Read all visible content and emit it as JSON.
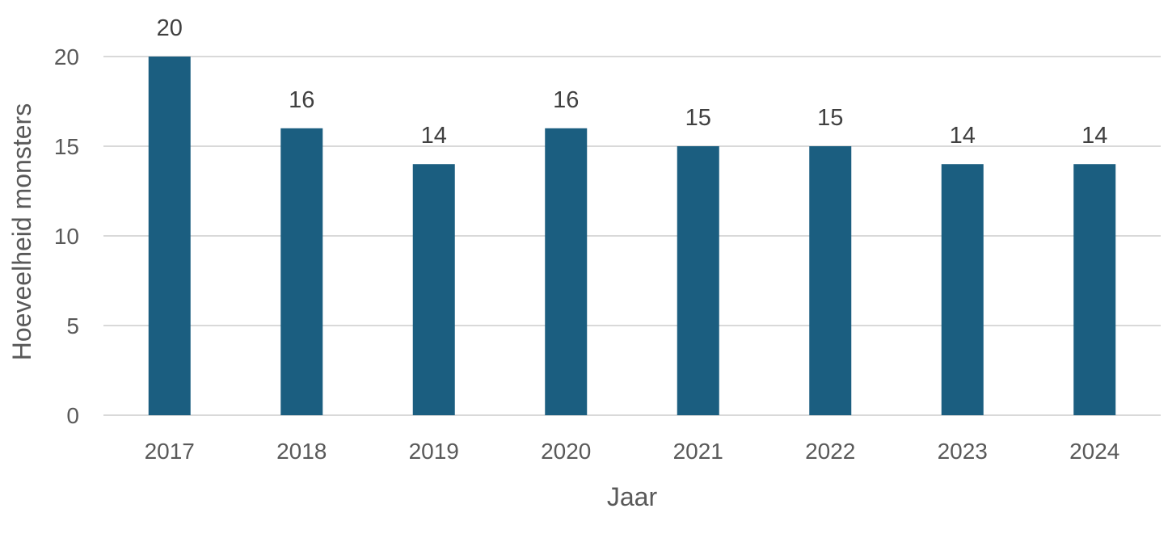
{
  "chart_data": {
    "type": "bar",
    "categories": [
      "2017",
      "2018",
      "2019",
      "2020",
      "2021",
      "2022",
      "2023",
      "2024"
    ],
    "values": [
      20,
      16,
      14,
      16,
      15,
      15,
      14,
      14
    ],
    "xlabel": "Jaar",
    "ylabel": "Hoeveelheid monsters",
    "ylim": [
      0,
      20
    ],
    "yticks": [
      0,
      5,
      10,
      15,
      20
    ],
    "grid": true,
    "legend": "none",
    "data_labels": true,
    "colors": {
      "bar": "#1b5e80",
      "grid": "#d9d9d9"
    }
  }
}
